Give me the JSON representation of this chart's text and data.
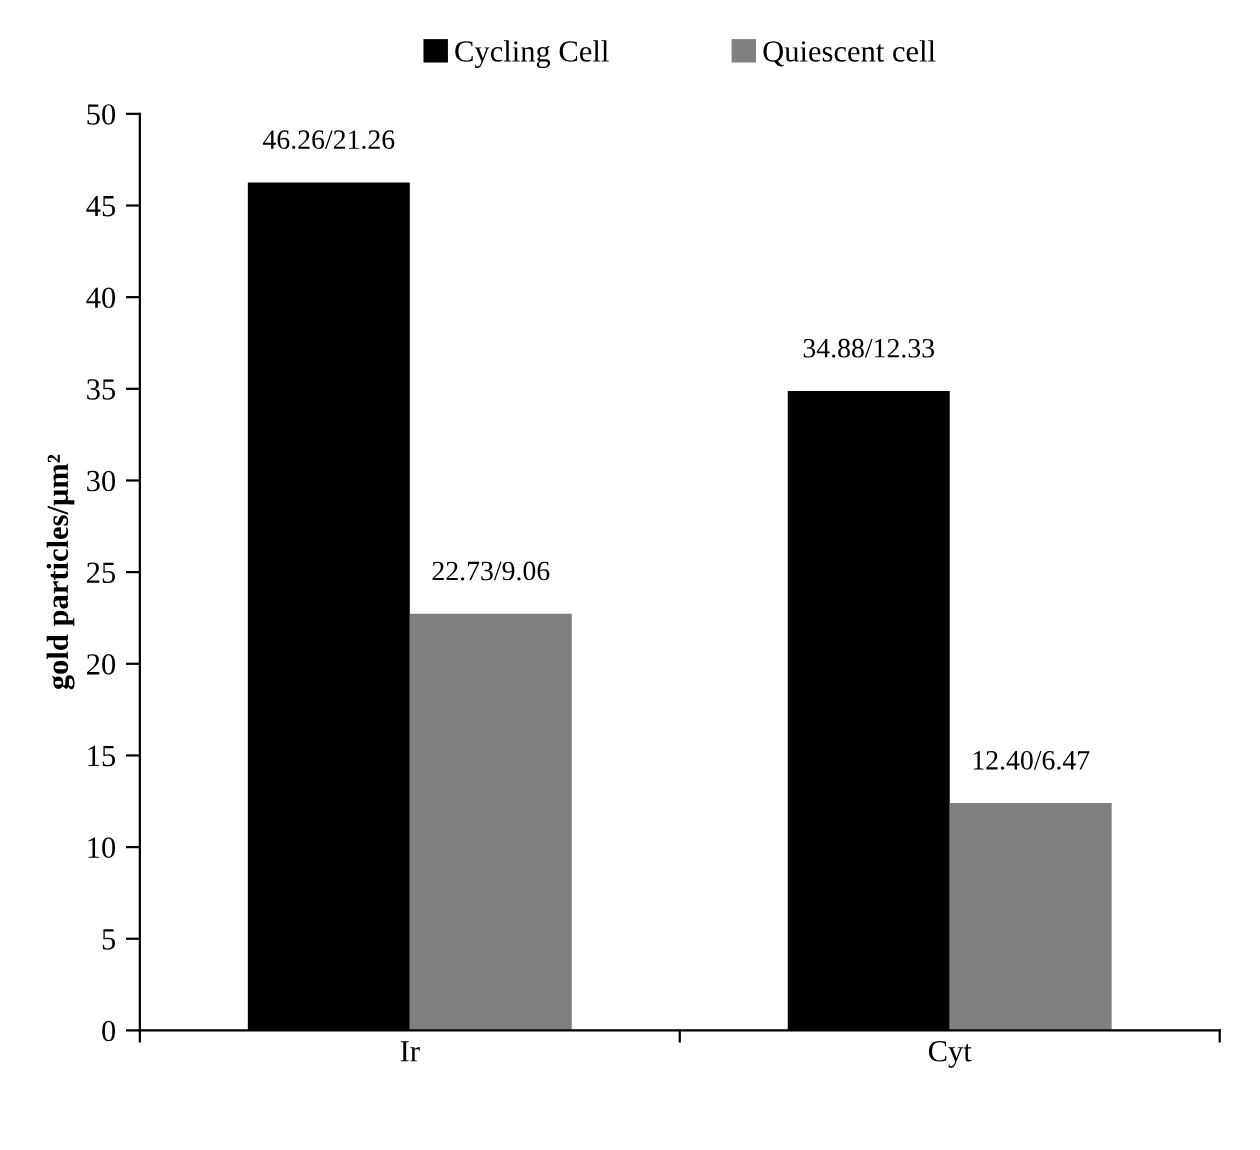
{
  "chart_data": {
    "type": "bar",
    "ylabel": "gold particles/μm²",
    "categories": [
      "Ir",
      "Cyt"
    ],
    "series": [
      {
        "name": "Cycling Cell",
        "color": "#000000",
        "values": [
          46.26,
          34.88
        ],
        "value_labels": [
          "46.26/21.26",
          "34.88/12.33"
        ]
      },
      {
        "name": "Quiescent cell",
        "color": "#808080",
        "values": [
          22.73,
          12.4
        ],
        "value_labels": [
          "22.73/9.06",
          "12.40/6.47"
        ]
      }
    ],
    "ylim": [
      0,
      50
    ],
    "yticks": [
      0,
      5,
      10,
      15,
      20,
      25,
      30,
      35,
      40,
      45,
      50
    ],
    "grid": false,
    "legend": "top"
  }
}
